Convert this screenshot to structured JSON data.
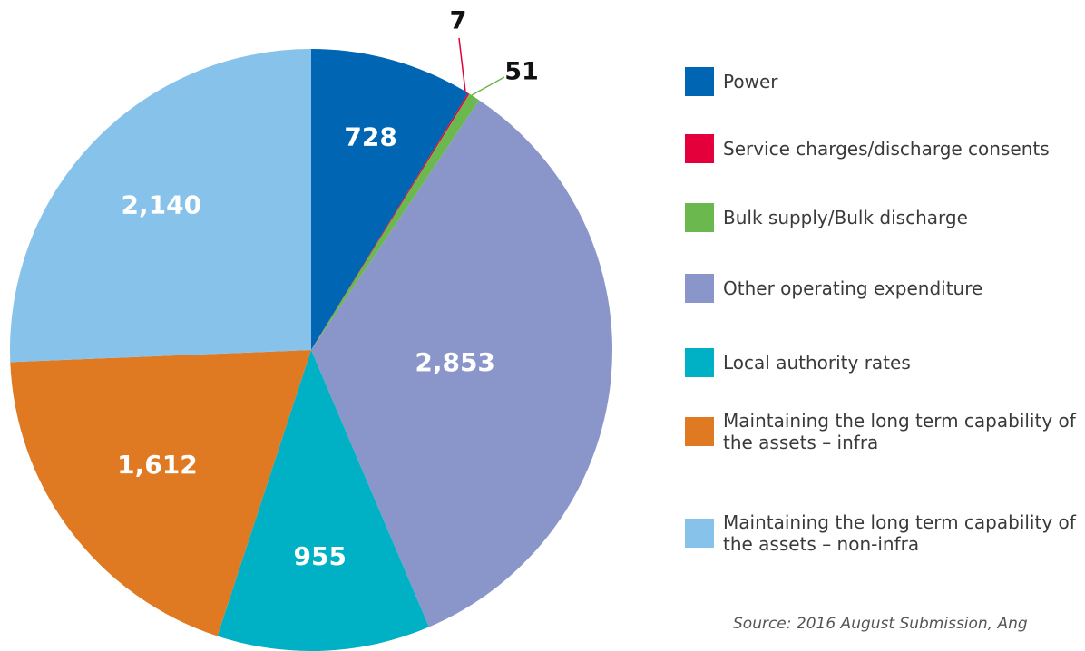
{
  "chart_data": {
    "type": "pie",
    "categories": [
      "Power",
      "Service charges/discharge consents",
      "Bulk supply/Bulk discharge",
      "Other operating expenditure",
      "Local authority rates",
      "Maintaining the long term capability of the assets – infra",
      "Maintaining the long term capability of the assets – non-infra"
    ],
    "values": [
      728,
      7,
      51,
      2853,
      955,
      1612,
      2140
    ],
    "value_labels": [
      "728",
      "7",
      "51",
      "2,853",
      "955",
      "1,612",
      "2,140"
    ],
    "colors": [
      "#0066b3",
      "#e4003b",
      "#6ab84e",
      "#8a96c9",
      "#00b0c4",
      "#e07a22",
      "#86c2ea"
    ],
    "legend": "right",
    "source": "Source: 2016 August Submission, Ang"
  }
}
